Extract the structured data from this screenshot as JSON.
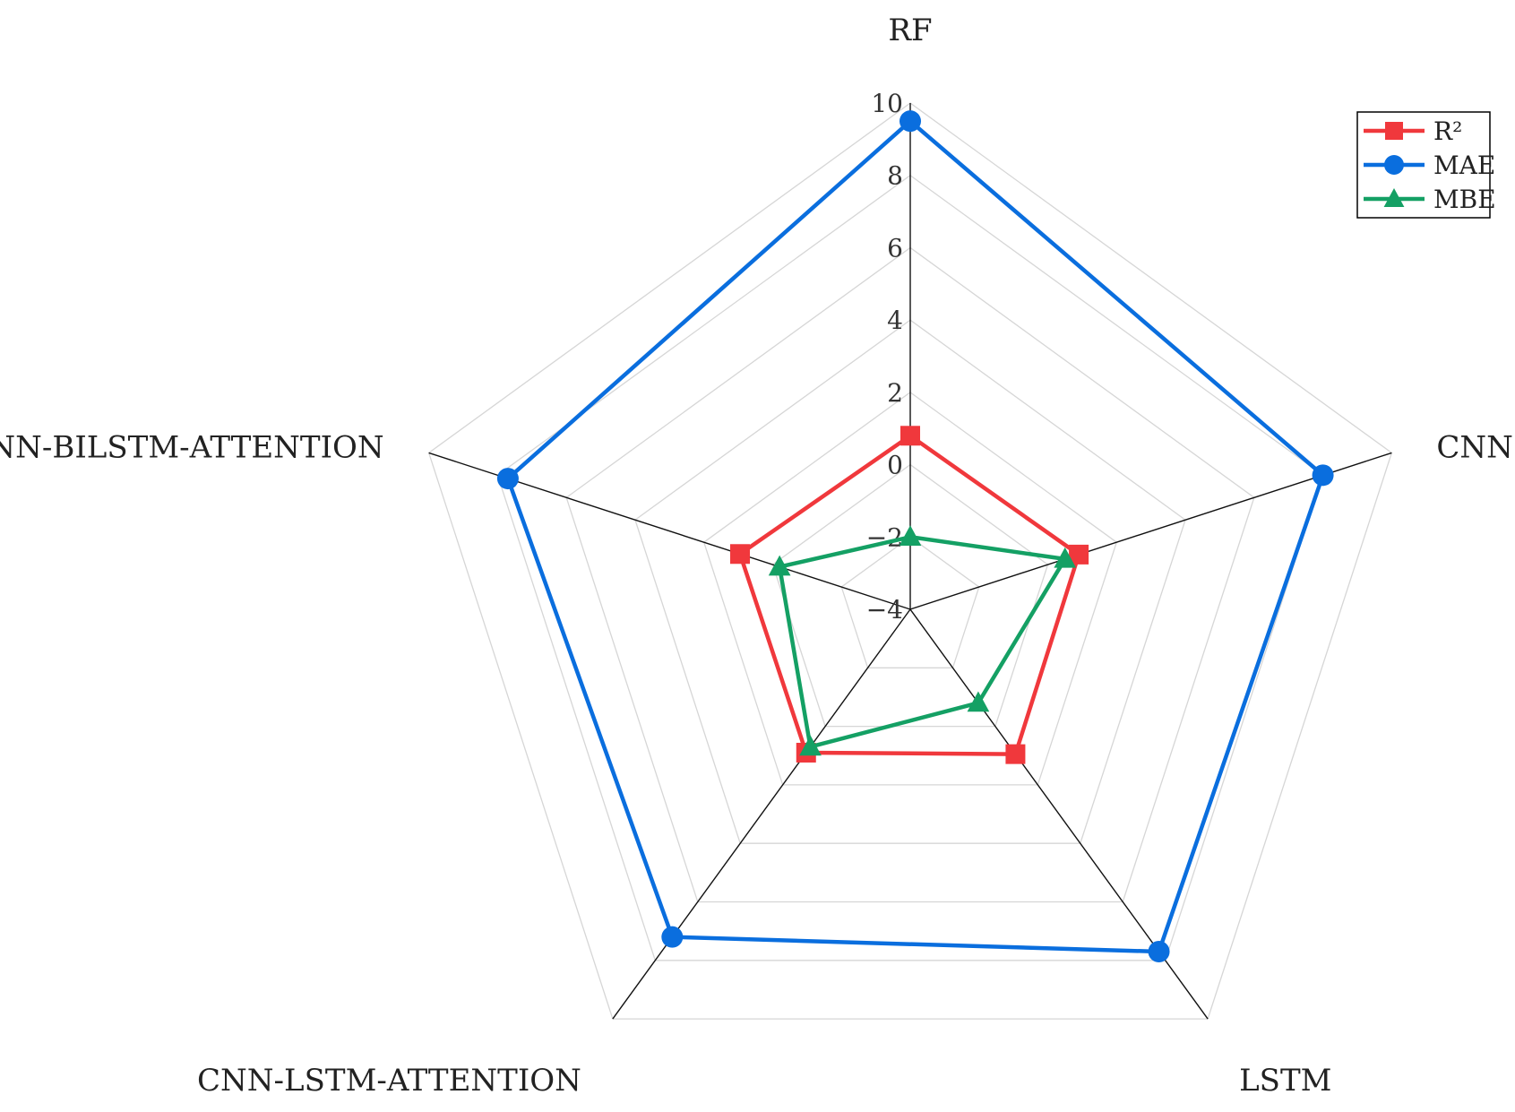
{
  "chart_data": {
    "type": "radar",
    "title": "",
    "axes": [
      "RF",
      "CNN",
      "LSTM",
      "CNN-LSTM-ATTENTION",
      "CNN-BILSTM-ATTENTION"
    ],
    "radial_range": [
      -4,
      10
    ],
    "ticks": [
      -4,
      -2,
      0,
      2,
      4,
      6,
      8,
      10
    ],
    "tick_labels": [
      "−4",
      "−2",
      "0",
      "2",
      "4",
      "6",
      "8",
      "10"
    ],
    "grid": true,
    "legend_position": "top-right",
    "series": [
      {
        "name": "R²",
        "marker": "square",
        "color": "#f0383c",
        "values": [
          0.8,
          0.9,
          0.95,
          0.9,
          0.95
        ]
      },
      {
        "name": "MAE",
        "marker": "circle",
        "color": "#0a6ede",
        "values": [
          9.5,
          8.0,
          7.7,
          7.2,
          7.7
        ]
      },
      {
        "name": "MBE",
        "marker": "triangle",
        "color": "#14a064",
        "values": [
          -2.0,
          0.5,
          -0.8,
          0.7,
          -0.2
        ]
      }
    ]
  }
}
